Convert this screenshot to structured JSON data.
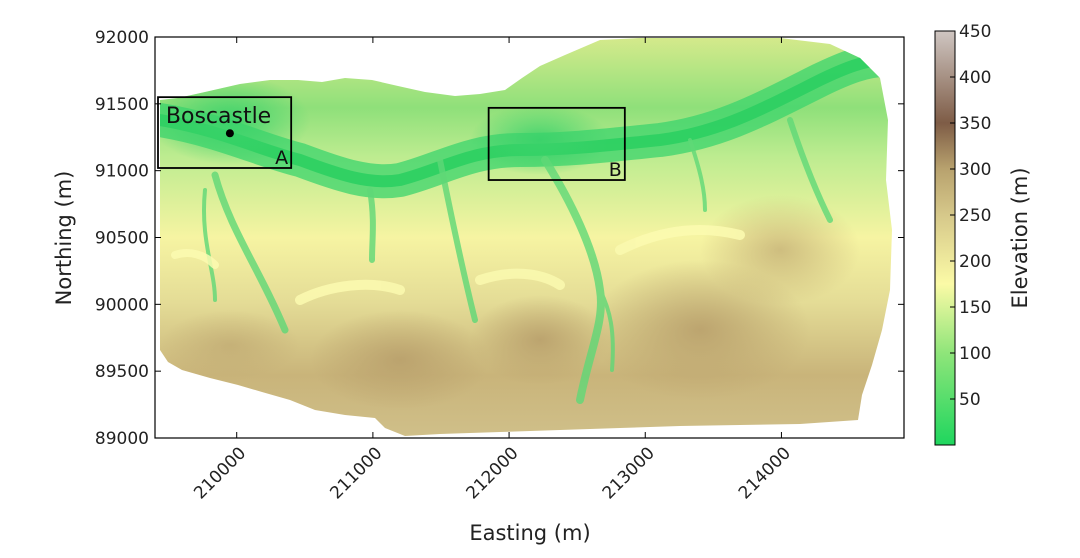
{
  "map": {
    "xlabel": "Easting (m)",
    "ylabel": "Northing (m)",
    "x_range": [
      209400,
      214900
    ],
    "y_range": [
      89000,
      92000
    ],
    "x_ticks": [
      "210000",
      "211000",
      "212000",
      "213000",
      "214000"
    ],
    "x_tick_values": [
      210000,
      211000,
      212000,
      213000,
      214000
    ],
    "y_ticks": [
      "92000",
      "91500",
      "91000",
      "90500",
      "90000",
      "89500",
      "89000"
    ],
    "y_tick_values": [
      92000,
      91500,
      91000,
      90500,
      90000,
      89500,
      89000
    ],
    "town": {
      "label": "Boscastle",
      "easting": 209950,
      "northing": 91280
    },
    "boxes": [
      {
        "label": "A",
        "x": [
          209400,
          210400
        ],
        "y": [
          91020,
          91550
        ]
      },
      {
        "label": "B",
        "x": [
          211850,
          212850
        ],
        "y": [
          90930,
          91470
        ]
      }
    ],
    "colors": {
      "valley": "#35d46a",
      "low": "#8ee27a",
      "mid": "#f9f7a6",
      "upland": "#c6b47a",
      "high": "#b59a6a",
      "frame": "#000000"
    }
  },
  "colorbar": {
    "label": "Elevation (m)",
    "ticks": [
      "450",
      "400",
      "350",
      "300",
      "250",
      "200",
      "150",
      "100",
      "50"
    ],
    "tick_values": [
      450,
      400,
      350,
      300,
      250,
      200,
      150,
      100,
      50
    ],
    "range": [
      0,
      450
    ],
    "stops": [
      {
        "v": 0,
        "c": "#1fd65e"
      },
      {
        "v": 100,
        "c": "#8fe57a"
      },
      {
        "v": 175,
        "c": "#fbfaa6"
      },
      {
        "v": 250,
        "c": "#d6c88a"
      },
      {
        "v": 300,
        "c": "#b8a26e"
      },
      {
        "v": 350,
        "c": "#7e5c46"
      },
      {
        "v": 450,
        "c": "#cfc6c2"
      }
    ]
  }
}
